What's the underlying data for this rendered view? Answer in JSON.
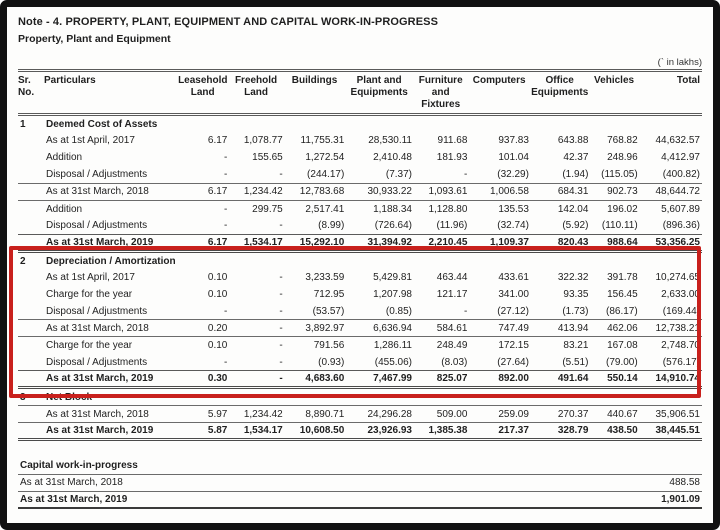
{
  "page": {
    "title": "Note - 4. PROPERTY, PLANT, EQUIPMENT AND CAPITAL WORK-IN-PROGRESS",
    "subtitle": "Property, Plant and Equipment",
    "unit_note": "(` in lakhs)"
  },
  "highlight": {
    "color": "#c8201c"
  },
  "table": {
    "columns": [
      "Sr.\nNo.",
      "Particulars",
      "Leasehold\nLand",
      "Freehold\nLand",
      "Buildings",
      "Plant and\nEquipments",
      "Furniture\nand\nFixtures",
      "Computers",
      "Office\nEquipments",
      "Vehicles",
      "Total"
    ],
    "sections": [
      {
        "sr": "1",
        "heading": "Deemed Cost of Assets",
        "highlighted": false,
        "rows": [
          {
            "label": "As at 1st April, 2017",
            "style": "plain",
            "values": [
              "6.17",
              "1,078.77",
              "11,755.31",
              "28,530.11",
              "911.68",
              "937.83",
              "643.88",
              "768.82",
              "44,632.57"
            ]
          },
          {
            "label": "Addition",
            "style": "plain",
            "values": [
              "-",
              "155.65",
              "1,272.54",
              "2,410.48",
              "181.93",
              "101.04",
              "42.37",
              "248.96",
              "4,412.97"
            ]
          },
          {
            "label": "Disposal / Adjustments",
            "style": "plain",
            "values": [
              "-",
              "-",
              "(244.17)",
              "(7.37)",
              "-",
              "(32.29)",
              "(1.94)",
              "(115.05)",
              "(400.82)"
            ]
          },
          {
            "label": "As at 31st March, 2018",
            "style": "rule",
            "values": [
              "6.17",
              "1,234.42",
              "12,783.68",
              "30,933.22",
              "1,093.61",
              "1,006.58",
              "684.31",
              "902.73",
              "48,644.72"
            ]
          },
          {
            "label": "Addition",
            "style": "plain",
            "values": [
              "-",
              "299.75",
              "2,517.41",
              "1,188.34",
              "1,128.80",
              "135.53",
              "142.04",
              "196.02",
              "5,607.89"
            ]
          },
          {
            "label": "Disposal / Adjustments",
            "style": "plain",
            "values": [
              "-",
              "-",
              "(8.99)",
              "(726.64)",
              "(11.96)",
              "(32.74)",
              "(5.92)",
              "(110.11)",
              "(896.36)"
            ]
          },
          {
            "label": "As at 31st March, 2019",
            "style": "total",
            "values": [
              "6.17",
              "1,534.17",
              "15,292.10",
              "31,394.92",
              "2,210.45",
              "1,109.37",
              "820.43",
              "988.64",
              "53,356.25"
            ]
          }
        ]
      },
      {
        "sr": "2",
        "heading": "Depreciation / Amortization",
        "highlighted": true,
        "rows": [
          {
            "label": "As at 1st April, 2017",
            "style": "plain",
            "values": [
              "0.10",
              "-",
              "3,233.59",
              "5,429.81",
              "463.44",
              "433.61",
              "322.32",
              "391.78",
              "10,274.65"
            ]
          },
          {
            "label": "Charge for the year",
            "style": "plain",
            "values": [
              "0.10",
              "-",
              "712.95",
              "1,207.98",
              "121.17",
              "341.00",
              "93.35",
              "156.45",
              "2,633.00"
            ]
          },
          {
            "label": "Disposal / Adjustments",
            "style": "plain",
            "values": [
              "-",
              "-",
              "(53.57)",
              "(0.85)",
              "-",
              "(27.12)",
              "(1.73)",
              "(86.17)",
              "(169.44)"
            ]
          },
          {
            "label": "As at 31st March, 2018",
            "style": "rule",
            "values": [
              "0.20",
              "-",
              "3,892.97",
              "6,636.94",
              "584.61",
              "747.49",
              "413.94",
              "462.06",
              "12,738.21"
            ]
          },
          {
            "label": "Charge for the year",
            "style": "plain",
            "values": [
              "0.10",
              "-",
              "791.56",
              "1,286.11",
              "248.49",
              "172.15",
              "83.21",
              "167.08",
              "2,748.70"
            ]
          },
          {
            "label": "Disposal / Adjustments",
            "style": "plain",
            "values": [
              "-",
              "-",
              "(0.93)",
              "(455.06)",
              "(8.03)",
              "(27.64)",
              "(5.51)",
              "(79.00)",
              "(576.17)"
            ]
          },
          {
            "label": "As at 31st March, 2019",
            "style": "total",
            "values": [
              "0.30",
              "-",
              "4,683.60",
              "7,467.99",
              "825.07",
              "892.00",
              "491.64",
              "550.14",
              "14,910.74"
            ]
          }
        ]
      },
      {
        "sr": "3",
        "heading": "Net Block",
        "highlighted": false,
        "rows": [
          {
            "label": "As at 31st March, 2018",
            "style": "rule",
            "values": [
              "5.97",
              "1,234.42",
              "8,890.71",
              "24,296.28",
              "509.00",
              "259.09",
              "270.37",
              "440.67",
              "35,906.51"
            ]
          },
          {
            "label": "As at 31st March, 2019",
            "style": "total",
            "values": [
              "5.87",
              "1,534.17",
              "10,608.50",
              "23,926.93",
              "1,385.38",
              "217.37",
              "328.79",
              "438.50",
              "38,445.51"
            ]
          }
        ]
      }
    ]
  },
  "cwip": {
    "heading": "Capital work-in-progress",
    "rows": [
      {
        "label": "As at 31st March, 2018",
        "style": "rule",
        "total": "488.58"
      },
      {
        "label": "As at 31st March, 2019",
        "style": "total",
        "total": "1,901.09"
      }
    ]
  }
}
